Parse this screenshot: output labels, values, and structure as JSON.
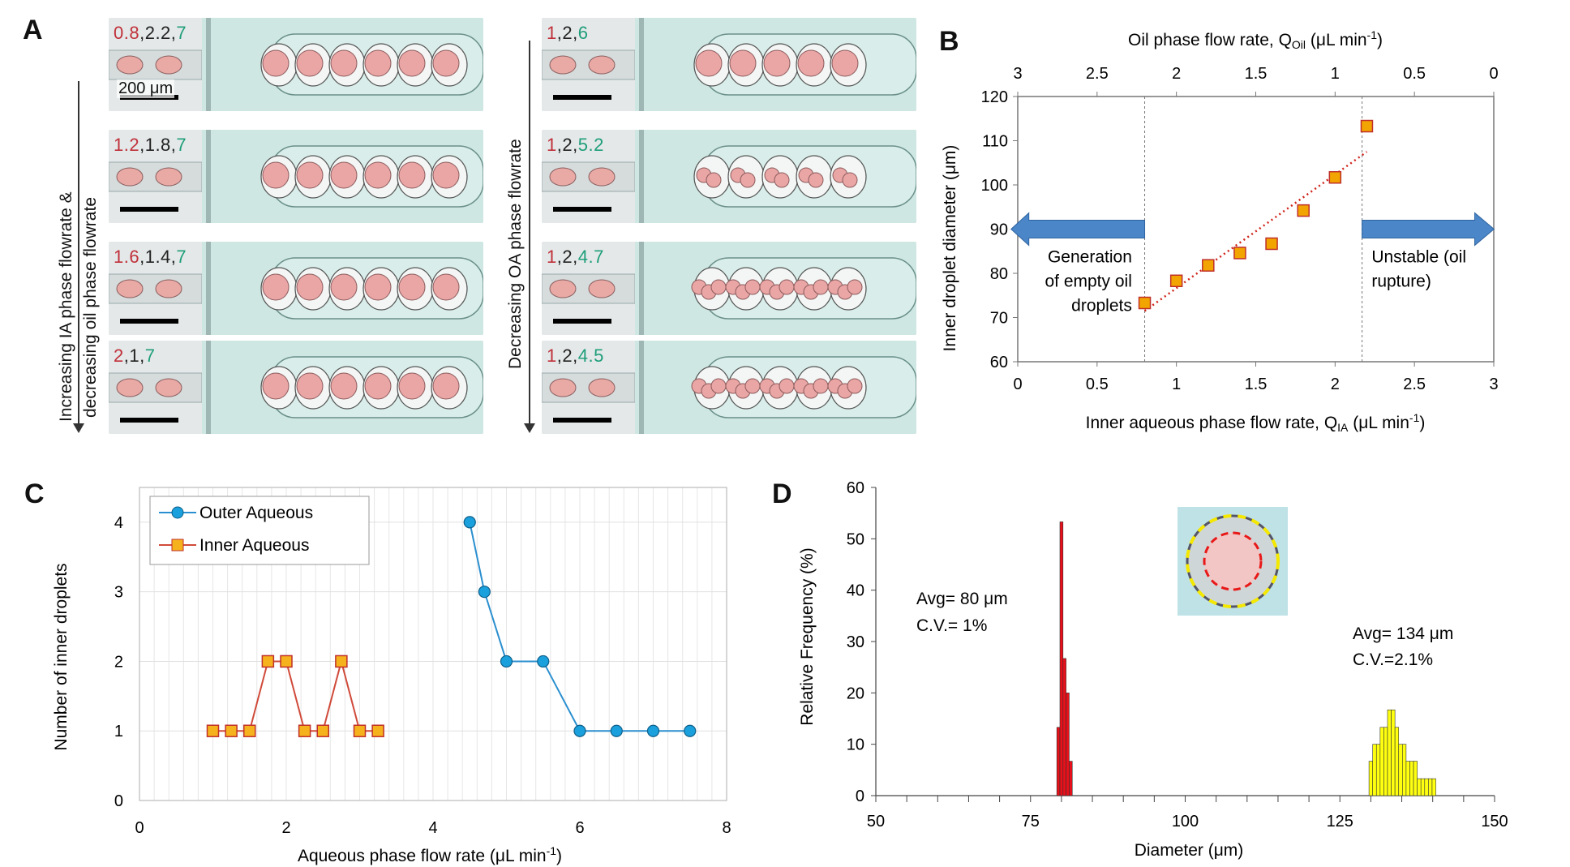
{
  "panels": {
    "a": "A",
    "b": "B",
    "c": "C",
    "d": "D"
  },
  "panel_a": {
    "left_label_line1": "Increasing IA phase flowrate &",
    "left_label_line2": "decreasing oil phase flowrate",
    "right_label": "Decreasing OA phase flowrate",
    "scale_text": "200 μm",
    "left_images": [
      {
        "q1": "0.8",
        "q2": "2.2",
        "q3": "7"
      },
      {
        "q1": "1.2",
        "q2": "1.8",
        "q3": "7"
      },
      {
        "q1": "1.6",
        "q2": "1.4",
        "q3": "7"
      },
      {
        "q1": "2",
        "q2": "1",
        "q3": "7"
      }
    ],
    "right_images": [
      {
        "q1": "1",
        "q2": "2",
        "q3": "6"
      },
      {
        "q1": "1",
        "q2": "2",
        "q3": "5.2"
      },
      {
        "q1": "1",
        "q2": "2",
        "q3": "4.7"
      },
      {
        "q1": "1",
        "q2": "2",
        "q3": "4.5"
      }
    ]
  },
  "chart_data": [
    {
      "id": "B",
      "type": "scatter",
      "x_label": "Inner aqueous phase flow rate, Q",
      "x_label_sub": "IA",
      "x_label_unit": " (μL min",
      "x_label_sup": "-1",
      "x_label_end": ")",
      "top_label": "Oil phase flow rate, Q",
      "top_label_sub": "Oil",
      "top_label_unit": " (μL min",
      "top_label_sup": "-1",
      "top_label_end": ")",
      "y_label": "Inner droplet diameter (μm)",
      "xlim": [
        0,
        3
      ],
      "ylim": [
        60,
        120
      ],
      "x_ticks": [
        "0",
        "0.5",
        "1",
        "1.5",
        "2",
        "2.5",
        "3"
      ],
      "top_ticks": [
        "3",
        "2.5",
        "2",
        "1.5",
        "1",
        "0.5",
        "0"
      ],
      "y_ticks": [
        "60",
        "70",
        "80",
        "90",
        "100",
        "110",
        "120"
      ],
      "x": [
        0.8,
        1.0,
        1.2,
        1.4,
        1.6,
        1.8,
        2.0,
        2.2
      ],
      "y": [
        73.3,
        78.3,
        81.8,
        84.6,
        86.7,
        94.2,
        101.7,
        113.3
      ],
      "trend": [
        [
          0.8,
          71.5
        ],
        [
          2.2,
          107.5
        ]
      ],
      "vlines": [
        0.8,
        2.17
      ],
      "left_text": [
        "Generation",
        "of empty oil",
        "droplets"
      ],
      "right_text": [
        "Unstable (oil",
        "rupture)"
      ],
      "marker_color": "#f2a400",
      "arrow_color": "#4a86c8"
    },
    {
      "id": "C",
      "type": "line",
      "x_label": "Aqueous phase flow rate (μL min",
      "x_label_sup": "-1",
      "x_label_end": ")",
      "y_label": "Number of inner droplets",
      "xlim": [
        0,
        8
      ],
      "ylim": [
        0,
        4.5
      ],
      "x_ticks": [
        "0",
        "2",
        "4",
        "6",
        "8"
      ],
      "y_ticks": [
        "0",
        "1",
        "2",
        "3",
        "4"
      ],
      "series": [
        {
          "name": "Outer Aqueous",
          "color": "#2a8fcf",
          "x": [
            4.5,
            4.7,
            5.0,
            5.5,
            6.0,
            6.5,
            7.0,
            7.5
          ],
          "y": [
            4,
            3,
            2,
            2,
            1,
            1,
            1,
            1
          ]
        },
        {
          "name": "Inner Aqueous",
          "color": "#d04a3a",
          "x": [
            1.0,
            1.25,
            1.5,
            1.75,
            2.0,
            2.25,
            2.5,
            2.75,
            3.0,
            3.25
          ],
          "y": [
            1,
            1,
            1,
            2,
            2,
            1,
            1,
            2,
            1,
            1
          ]
        }
      ]
    },
    {
      "id": "D",
      "type": "bar",
      "x_label": "Diameter (μm)",
      "y_label": "Relative Frequency (%)",
      "xlim": [
        50,
        150
      ],
      "ylim": [
        0,
        60
      ],
      "x_ticks": [
        "50",
        "75",
        "100",
        "125",
        "150"
      ],
      "y_ticks": [
        "0",
        "10",
        "20",
        "30",
        "40",
        "50",
        "60"
      ],
      "series": [
        {
          "name": "inner",
          "color": "#e8101a",
          "bin_width": 0.5,
          "x": [
            79.5,
            80.0,
            80.5,
            81.0,
            81.5
          ],
          "values": [
            13.3,
            53.3,
            26.7,
            20.0,
            6.7
          ]
        },
        {
          "name": "outer",
          "color": "#ffff10",
          "bin_width": 0.6,
          "x": [
            130.0,
            130.6,
            131.2,
            131.8,
            132.4,
            133.0,
            133.6,
            134.2,
            134.8,
            135.4,
            136.0,
            136.6,
            137.2,
            137.8,
            138.4,
            139.0,
            139.6,
            140.2
          ],
          "values": [
            6.7,
            10,
            10,
            13.3,
            13.3,
            16.7,
            16.7,
            13.3,
            10,
            10,
            6.7,
            6.7,
            6.7,
            3.3,
            3.3,
            3.3,
            3.3,
            3.3
          ]
        }
      ],
      "inner_avg": "Avg= 80 μm",
      "inner_cv": "C.V.= 1%",
      "outer_avg": "Avg= 134 μm",
      "outer_cv": "C.V.=2.1%"
    }
  ]
}
